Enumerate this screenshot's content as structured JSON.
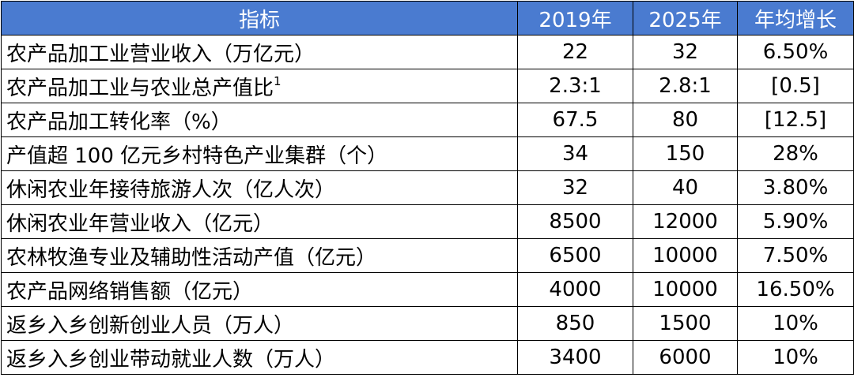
{
  "table": {
    "header": [
      "指标",
      "2019年",
      "2025年",
      "年均增长"
    ],
    "rows": [
      {
        "label": "农产品加工业营业收入（万亿元）",
        "values": [
          "22",
          "32",
          "6.50%"
        ]
      },
      {
        "label": "农产品加工业与农业总产值比",
        "note": "1",
        "values": [
          "2.3:1",
          "2.8:1",
          "[0.5]"
        ]
      },
      {
        "label": "农产品加工转化率（%）",
        "values": [
          "67.5",
          "80",
          "[12.5]"
        ]
      },
      {
        "label": "产值超 100 亿元乡村特色产业集群（个）",
        "values": [
          "34",
          "150",
          "28%"
        ]
      },
      {
        "label": "休闲农业年接待旅游人次（亿人次）",
        "values": [
          "32",
          "40",
          "3.80%"
        ]
      },
      {
        "label": "休闲农业年营业收入（亿元）",
        "values": [
          "8500",
          "12000",
          "5.90%"
        ]
      },
      {
        "label": "农林牧渔专业及辅助性活动产值（亿元）",
        "values": [
          "6500",
          "10000",
          "7.50%"
        ]
      },
      {
        "label": "农产品网络销售额（亿元）",
        "values": [
          "4000",
          "10000",
          "16.50%"
        ]
      },
      {
        "label": "返乡入乡创新创业人员（万人）",
        "values": [
          "850",
          "1500",
          "10%"
        ]
      },
      {
        "label": "返乡入乡创业带动就业人数（万人）",
        "values": [
          "3400",
          "6000",
          "10%"
        ]
      }
    ]
  }
}
